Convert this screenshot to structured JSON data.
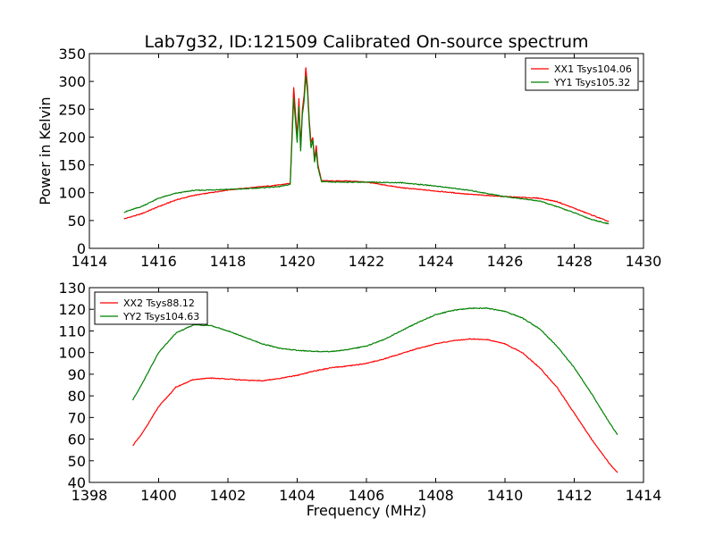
{
  "chart_data": [
    {
      "type": "line",
      "title": "Lab7g32, ID:121509 Calibrated On-source spectrum",
      "xlabel": "",
      "ylabel": "Power in Kelvin",
      "xlim": [
        1414,
        1430
      ],
      "ylim": [
        0,
        350
      ],
      "xticks": [
        1414,
        1416,
        1418,
        1420,
        1422,
        1424,
        1426,
        1428,
        1430
      ],
      "yticks": [
        0,
        50,
        100,
        150,
        200,
        250,
        300,
        350
      ],
      "legend_position": "top-right",
      "series": [
        {
          "name": "XX1 Tsys104.06",
          "color": "#ff0000",
          "points": [
            [
              1415.0,
              53
            ],
            [
              1415.5,
              62
            ],
            [
              1416.0,
              75
            ],
            [
              1416.5,
              87
            ],
            [
              1417.0,
              95
            ],
            [
              1417.5,
              100
            ],
            [
              1418.0,
              105
            ],
            [
              1418.5,
              108
            ],
            [
              1419.0,
              111
            ],
            [
              1419.5,
              114
            ],
            [
              1419.8,
              117
            ],
            [
              1419.9,
              290
            ],
            [
              1420.0,
              200
            ],
            [
              1420.05,
              270
            ],
            [
              1420.1,
              180
            ],
            [
              1420.15,
              250
            ],
            [
              1420.2,
              275
            ],
            [
              1420.25,
              325
            ],
            [
              1420.3,
              290
            ],
            [
              1420.35,
              230
            ],
            [
              1420.4,
              190
            ],
            [
              1420.45,
              200
            ],
            [
              1420.5,
              160
            ],
            [
              1420.55,
              185
            ],
            [
              1420.6,
              150
            ],
            [
              1420.7,
              122
            ],
            [
              1421.0,
              121
            ],
            [
              1421.5,
              121
            ],
            [
              1422.0,
              119
            ],
            [
              1423.0,
              109
            ],
            [
              1424.0,
              103
            ],
            [
              1425.0,
              97
            ],
            [
              1426.0,
              93
            ],
            [
              1427.0,
              90
            ],
            [
              1427.5,
              84
            ],
            [
              1428.0,
              72
            ],
            [
              1428.5,
              60
            ],
            [
              1429.0,
              48
            ]
          ]
        },
        {
          "name": "YY1 Tsys105.32",
          "color": "#008000",
          "points": [
            [
              1415.0,
              65
            ],
            [
              1415.5,
              75
            ],
            [
              1416.0,
              90
            ],
            [
              1416.5,
              99
            ],
            [
              1417.0,
              104
            ],
            [
              1418.0,
              106
            ],
            [
              1418.5,
              107
            ],
            [
              1419.0,
              109
            ],
            [
              1419.5,
              111
            ],
            [
              1419.8,
              115
            ],
            [
              1419.9,
              270
            ],
            [
              1420.0,
              190
            ],
            [
              1420.05,
              255
            ],
            [
              1420.1,
              175
            ],
            [
              1420.15,
              240
            ],
            [
              1420.2,
              265
            ],
            [
              1420.25,
              310
            ],
            [
              1420.3,
              280
            ],
            [
              1420.35,
              220
            ],
            [
              1420.4,
              180
            ],
            [
              1420.45,
              195
            ],
            [
              1420.5,
              155
            ],
            [
              1420.55,
              175
            ],
            [
              1420.6,
              145
            ],
            [
              1420.7,
              120
            ],
            [
              1421.0,
              119
            ],
            [
              1422.0,
              119
            ],
            [
              1423.0,
              118
            ],
            [
              1424.0,
              112
            ],
            [
              1425.0,
              104
            ],
            [
              1426.0,
              93
            ],
            [
              1427.0,
              85
            ],
            [
              1427.5,
              75
            ],
            [
              1428.0,
              64
            ],
            [
              1428.5,
              52
            ],
            [
              1429.0,
              44
            ]
          ]
        }
      ]
    },
    {
      "type": "line",
      "title": "",
      "xlabel": "Frequency (MHz)",
      "ylabel": "",
      "xlim": [
        1398,
        1414
      ],
      "ylim": [
        40,
        130
      ],
      "xticks": [
        1398,
        1400,
        1402,
        1404,
        1406,
        1408,
        1410,
        1412,
        1414
      ],
      "yticks": [
        40,
        50,
        60,
        70,
        80,
        90,
        100,
        110,
        120,
        130
      ],
      "legend_position": "top-left",
      "series": [
        {
          "name": "XX2 Tsys88.12",
          "color": "#ff0000",
          "points": [
            [
              1399.25,
              57
            ],
            [
              1399.5,
              62
            ],
            [
              1400.0,
              75
            ],
            [
              1400.5,
              84
            ],
            [
              1401.0,
              87.5
            ],
            [
              1401.5,
              88.2
            ],
            [
              1402.0,
              87.8
            ],
            [
              1402.5,
              87.2
            ],
            [
              1403.0,
              87.0
            ],
            [
              1403.5,
              88.0
            ],
            [
              1404.0,
              89.5
            ],
            [
              1404.5,
              91.5
            ],
            [
              1405.0,
              93.0
            ],
            [
              1405.5,
              93.8
            ],
            [
              1406.0,
              95.0
            ],
            [
              1406.5,
              97.0
            ],
            [
              1407.0,
              99.5
            ],
            [
              1407.5,
              102.0
            ],
            [
              1408.0,
              104.0
            ],
            [
              1408.5,
              105.5
            ],
            [
              1409.0,
              106.3
            ],
            [
              1409.5,
              106.0
            ],
            [
              1410.0,
              104.0
            ],
            [
              1410.5,
              100.0
            ],
            [
              1411.0,
              93.0
            ],
            [
              1411.5,
              84.0
            ],
            [
              1412.0,
              72.0
            ],
            [
              1412.5,
              60.0
            ],
            [
              1413.0,
              49.0
            ],
            [
              1413.25,
              44.5
            ]
          ]
        },
        {
          "name": "YY2 Tsys104.63",
          "color": "#008000",
          "points": [
            [
              1399.25,
              78
            ],
            [
              1399.5,
              85
            ],
            [
              1400.0,
              100
            ],
            [
              1400.5,
              109
            ],
            [
              1401.0,
              112.8
            ],
            [
              1401.5,
              112.5
            ],
            [
              1402.0,
              110.0
            ],
            [
              1402.5,
              107.0
            ],
            [
              1403.0,
              104.0
            ],
            [
              1403.5,
              102.0
            ],
            [
              1404.0,
              101.0
            ],
            [
              1404.5,
              100.5
            ],
            [
              1405.0,
              100.5
            ],
            [
              1405.5,
              101.5
            ],
            [
              1406.0,
              103.0
            ],
            [
              1406.5,
              106.0
            ],
            [
              1407.0,
              110.0
            ],
            [
              1407.5,
              114.0
            ],
            [
              1408.0,
              117.5
            ],
            [
              1408.5,
              119.5
            ],
            [
              1409.0,
              120.5
            ],
            [
              1409.5,
              120.5
            ],
            [
              1410.0,
              119.0
            ],
            [
              1410.5,
              116.0
            ],
            [
              1411.0,
              111.0
            ],
            [
              1411.5,
              103.0
            ],
            [
              1412.0,
              93.0
            ],
            [
              1412.5,
              81.0
            ],
            [
              1413.0,
              68.0
            ],
            [
              1413.25,
              62.0
            ]
          ]
        }
      ]
    }
  ]
}
